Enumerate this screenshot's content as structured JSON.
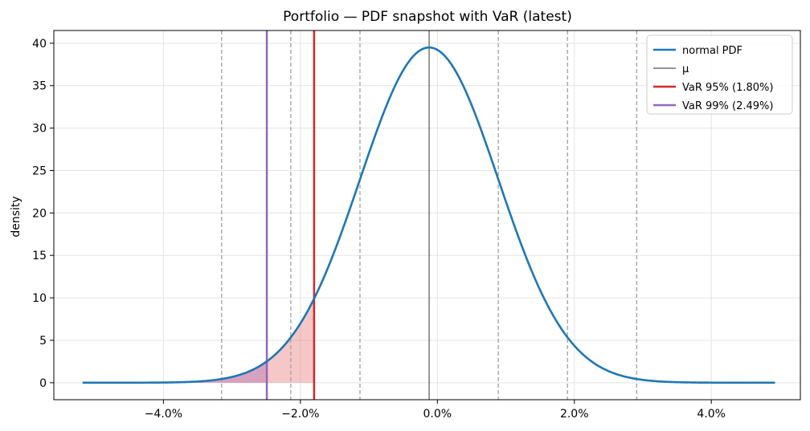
{
  "chart_data": {
    "type": "line",
    "title": "Portfolio — PDF snapshot with VaR (latest)",
    "xlabel": "",
    "ylabel": "density",
    "xlim": [
      -5.6,
      5.3
    ],
    "ylim": [
      -2,
      41.5
    ],
    "x_ticks": [
      {
        "value": -4,
        "label": "−4.0%"
      },
      {
        "value": -2,
        "label": "−2.0%"
      },
      {
        "value": 0,
        "label": "0.0%"
      },
      {
        "value": 2,
        "label": "2.0%"
      },
      {
        "value": 4,
        "label": "4.0%"
      }
    ],
    "y_ticks": [
      {
        "value": 0,
        "label": "0"
      },
      {
        "value": 5,
        "label": "5"
      },
      {
        "value": 10,
        "label": "10"
      },
      {
        "value": 15,
        "label": "15"
      },
      {
        "value": 20,
        "label": "20"
      },
      {
        "value": 25,
        "label": "25"
      },
      {
        "value": 30,
        "label": "30"
      },
      {
        "value": 35,
        "label": "35"
      },
      {
        "value": 40,
        "label": "40"
      }
    ],
    "grid": true,
    "legend_position": "top-right",
    "distribution": {
      "mean": -0.12,
      "std": 1.01,
      "x_range": [
        -5.18,
        4.93
      ]
    },
    "sigma_lines": [
      -3.15,
      -2.14,
      -1.13,
      0.89,
      1.9,
      2.91
    ],
    "series": [
      {
        "name": "normal PDF",
        "color": "#1f77b4",
        "kind": "curve"
      },
      {
        "name": "μ",
        "color": "#555555",
        "kind": "vline",
        "x": -0.12
      },
      {
        "name": "VaR 95% (1.80%)",
        "color": "#d62728",
        "kind": "vline",
        "x": -1.8
      },
      {
        "name": "VaR 99% (2.49%)",
        "color": "#9467bd",
        "kind": "vline",
        "x": -2.49
      }
    ],
    "tail_fill_color": "#e57373",
    "tail_fill_color_deep": "#a05fb0"
  }
}
